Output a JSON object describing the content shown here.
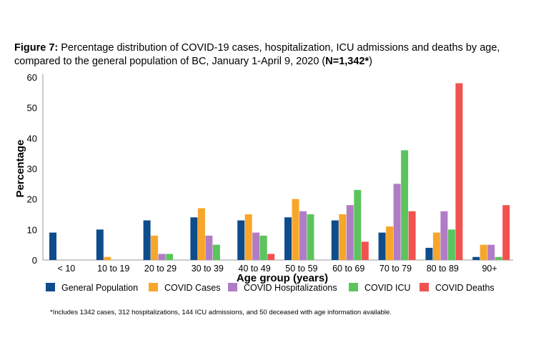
{
  "title": {
    "prefix": "Figure 7:",
    "text": " Percentage distribution of COVID-19 cases, hospitalization, ICU admissions and deaths by age, compared to the general population of BC, January 1-April 9, 2020 (",
    "n_label": "N=1,342*",
    "suffix": ")"
  },
  "footnote": "*Includes 1342 cases, 312 hospitalizations,  144 ICU admissions, and 50 deceased with age information  available.",
  "chart_data": {
    "type": "bar",
    "title": "Percentage distribution of COVID-19 cases, hospitalization, ICU admissions and deaths by age, compared to the general population of BC, January 1-April 9, 2020 (N=1,342*)",
    "xlabel": "Age group (years)",
    "ylabel": "Percentage",
    "ylim": [
      0,
      60
    ],
    "yticks": [
      "0",
      "10",
      "20",
      "30",
      "40",
      "50",
      "60"
    ],
    "grid": false,
    "legend_position": "bottom",
    "categories": [
      "< 10",
      "10 to 19",
      "20 to 29",
      "30 to 39",
      "40 to 49",
      "50 to 59",
      "60 to 69",
      "70 to 79",
      "80 to 89",
      "90+"
    ],
    "series": [
      {
        "name": "General Population",
        "color": "#0E4C8C",
        "values": [
          9,
          10,
          13,
          14,
          13,
          14,
          13,
          9,
          4,
          1
        ]
      },
      {
        "name": "COVID Cases",
        "color": "#F7A62B",
        "values": [
          0,
          1,
          8,
          17,
          15,
          20,
          15,
          11,
          9,
          5
        ]
      },
      {
        "name": "COVID Hospitalizations",
        "color": "#B07CC6",
        "values": [
          0,
          0,
          2,
          8,
          9,
          16,
          18,
          25,
          16,
          5
        ]
      },
      {
        "name": "COVID ICU",
        "color": "#5CC45C",
        "values": [
          0,
          0,
          2,
          5,
          8,
          15,
          23,
          36,
          10,
          1
        ]
      },
      {
        "name": "COVID Deaths",
        "color": "#F2524F",
        "values": [
          0,
          0,
          0,
          0,
          2,
          0,
          6,
          16,
          58,
          18
        ]
      }
    ]
  }
}
